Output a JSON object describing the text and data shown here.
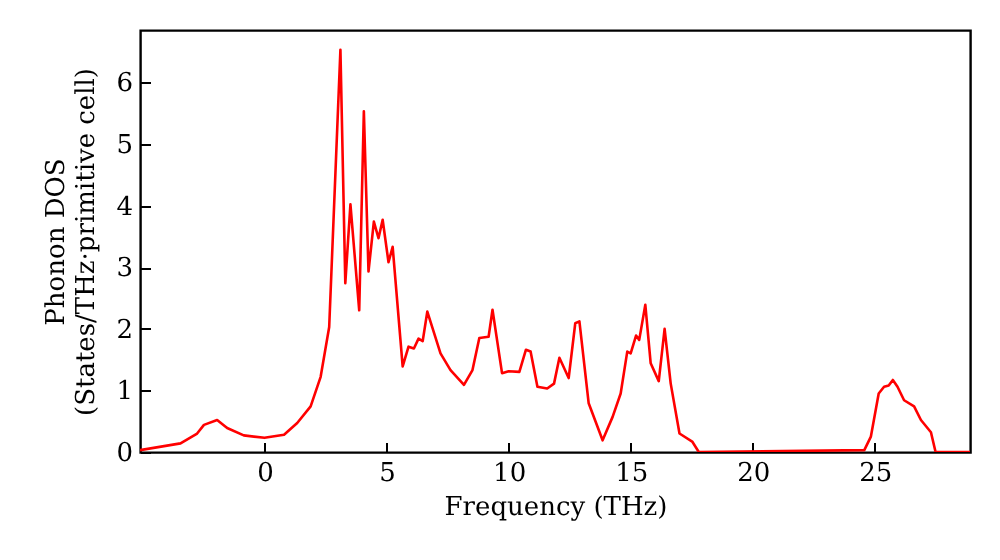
{
  "chart_data": {
    "type": "line",
    "xlabel": "Frequency (THz)",
    "ylabel": "Phonon DOS\n(States/THz·primitive cell)",
    "x": [
      -5.1,
      -3.44,
      -2.76,
      -2.48,
      -1.94,
      -1.53,
      -0.85,
      0,
      0.8,
      1.34,
      1.89,
      2.3,
      2.65,
      3.11,
      3.31,
      3.52,
      3.88,
      4.07,
      4.26,
      4.48,
      4.67,
      4.84,
      5.08,
      5.25,
      5.66,
      5.9,
      6.12,
      6.31,
      6.48,
      6.67,
      7.21,
      7.62,
      8.17,
      8.52,
      8.8,
      9.18,
      9.34,
      9.73,
      10,
      10.44,
      10.71,
      10.9,
      11.18,
      11.58,
      11.86,
      12.08,
      12.46,
      12.73,
      12.9,
      13.28,
      13.85,
      14.26,
      14.59,
      14.86,
      15,
      15.22,
      15.35,
      15.6,
      15.82,
      16.15,
      16.39,
      16.64,
      17,
      17.52,
      17.79,
      24.57,
      24.84,
      25.16,
      25.38,
      25.57,
      25.74,
      25.93,
      26.2,
      26.61,
      26.89,
      27.3,
      27.49,
      28.9
    ],
    "series": [
      {
        "color": "#ff0000",
        "values": [
          0.03,
          0.14,
          0.3,
          0.44,
          0.52,
          0.39,
          0.27,
          0.23,
          0.28,
          0.47,
          0.74,
          1.22,
          2.03,
          6.53,
          2.74,
          4.02,
          2.3,
          5.53,
          2.93,
          3.74,
          3.47,
          3.77,
          3.08,
          3.33,
          1.39,
          1.71,
          1.68,
          1.84,
          1.8,
          2.28,
          1.6,
          1.33,
          1.09,
          1.33,
          1.85,
          1.87,
          2.31,
          1.28,
          1.31,
          1.3,
          1.66,
          1.63,
          1.06,
          1.03,
          1.11,
          1.53,
          1.2,
          2.09,
          2.12,
          0.79,
          0.19,
          0.57,
          0.95,
          1.63,
          1.6,
          1.89,
          1.82,
          2.39,
          1.44,
          1.15,
          2,
          1.11,
          0.3,
          0.17,
          0,
          0.03,
          0.25,
          0.95,
          1.06,
          1.08,
          1.17,
          1.06,
          0.84,
          0.74,
          0.52,
          0.32,
          0,
          0
        ]
      }
    ],
    "xlim": [
      -5.1,
      28.9
    ],
    "xticks": [
      0,
      5,
      10,
      15,
      20,
      25
    ],
    "ylim": [
      0,
      6.85
    ],
    "yticks": [
      0,
      1,
      2,
      3,
      4,
      5,
      6
    ],
    "line_style": "solid"
  }
}
